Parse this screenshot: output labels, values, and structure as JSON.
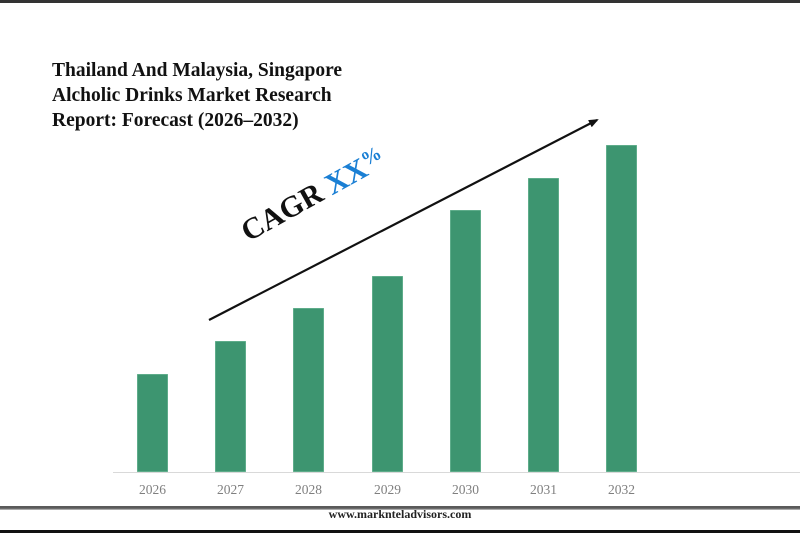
{
  "title": {
    "lines": [
      "Thailand And Malaysia, Singapore",
      "Alcholic Drinks Market Research",
      "Report: Forecast (2026–2032)"
    ]
  },
  "annotation": {
    "cagr_label": "CAGR",
    "cagr_value": "XX",
    "cagr_unit": "%"
  },
  "footer": {
    "website": "www.marknteladvisors.com"
  },
  "colors": {
    "bar": "#3d9570",
    "cagr_value": "#1a7fd4",
    "axis_labels": "#7f7f7f"
  },
  "chart_data": {
    "type": "bar",
    "title": "Thailand And Malaysia, Singapore Alcholic Drinks Market Research Report: Forecast (2026–2032)",
    "categories": [
      "2026",
      "2027",
      "2028",
      "2029",
      "2030",
      "2031",
      "2032"
    ],
    "values": [
      30,
      40,
      50,
      60,
      80,
      90,
      100
    ],
    "value_note": "Relative bar heights (no y-axis shown); 2032 = 100",
    "xlabel": "",
    "ylabel": "",
    "grid": false,
    "legend": null,
    "annotations": [
      "CAGR XX%"
    ]
  }
}
